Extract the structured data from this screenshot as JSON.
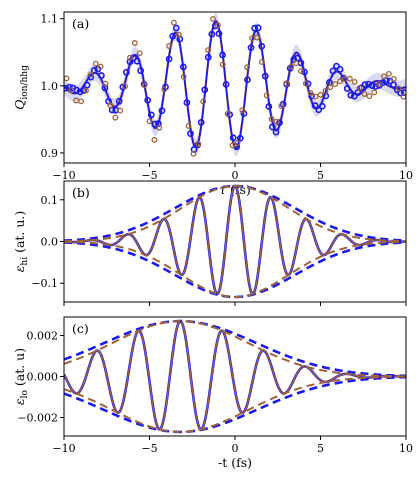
{
  "colors": {
    "blue": "#1a1aee",
    "brown": "#a0623a",
    "band": "#b9b9e6"
  },
  "chart_data": [
    {
      "type": "scatter",
      "panel_label": "(a)",
      "xlabel": "τ (fs)",
      "ylabel": "Q",
      "ylabel_sub": "ion/hhg",
      "xlim": [
        -10,
        10
      ],
      "ylim": [
        0.885,
        1.11
      ],
      "xticks": [
        -10,
        -5,
        0,
        5,
        10
      ],
      "xtick_labels": [
        "−10",
        "−5",
        "0",
        "5",
        "10"
      ],
      "yticks": [
        0.9,
        1.0,
        1.1
      ],
      "ytick_labels": [
        "0.9",
        "1.0",
        "1.1"
      ],
      "model": {
        "offset": 1.0,
        "amplitude": 0.095,
        "period_fs": 2.38,
        "center_fs": -1.0,
        "width_fs": 5.6,
        "tail": 0.015
      },
      "series": [
        {
          "color_key": "blue",
          "marker": "circle",
          "x_range": [
            -10,
            10
          ],
          "n_points": 96
        },
        {
          "color_key": "brown",
          "marker": "circle",
          "x_range": [
            -10,
            10
          ],
          "n_points": 70
        }
      ]
    },
    {
      "type": "line",
      "panel_label": "(b)",
      "xlabel": "",
      "ylabel": "ε",
      "ylabel_sub": "hi",
      "ylabel_suffix": " (at. u.)",
      "xlim": [
        -10,
        10
      ],
      "ylim": [
        -0.145,
        0.145
      ],
      "xticks": [
        -10,
        -5,
        0,
        5,
        10
      ],
      "xtick_labels": [
        "",
        "",
        "",
        "",
        ""
      ],
      "yticks": [
        -0.1,
        0.0,
        0.1
      ],
      "ytick_labels": [
        "−0.1",
        "0.0",
        "0.1"
      ],
      "model": {
        "amplitude": 0.133,
        "sigma_fs": 4.4,
        "period_fs": 2.1,
        "center_fs": 0.0
      }
    },
    {
      "type": "line",
      "panel_label": "(c)",
      "xlabel": "-t (fs)",
      "ylabel": "ε",
      "ylabel_sub": "lo",
      "ylabel_suffix": " (at. u)",
      "xlim": [
        -10,
        10
      ],
      "ylim": [
        -0.0029,
        0.0029
      ],
      "xticks": [
        -10,
        -5,
        0,
        5,
        10
      ],
      "xtick_labels": [
        "−10",
        "−5",
        "0",
        "5",
        "10"
      ],
      "yticks": [
        -0.002,
        0.0,
        0.002
      ],
      "ytick_labels": [
        "−0.002",
        "0.000",
        "0.002"
      ],
      "model": {
        "amplitude": 0.0027,
        "sigma_fs": 5.6,
        "period_fs": 2.45,
        "center_fs": -3.2
      }
    }
  ]
}
